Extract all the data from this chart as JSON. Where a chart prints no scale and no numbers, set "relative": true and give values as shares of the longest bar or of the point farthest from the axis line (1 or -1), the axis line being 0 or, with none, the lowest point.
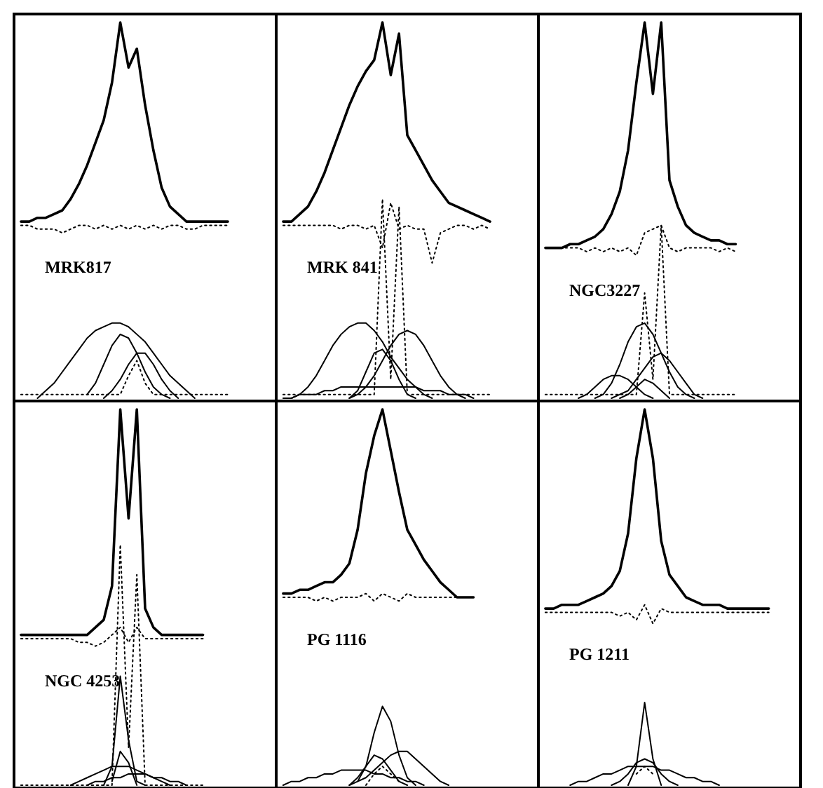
{
  "chart_data": [
    {
      "type": "line",
      "relative": true,
      "title": "MRK817",
      "categories": [
        null,
        null,
        null,
        null,
        null,
        null,
        null,
        null,
        null,
        null,
        null,
        null,
        null,
        null,
        null,
        null,
        null,
        null,
        null,
        null,
        null,
        null,
        null,
        null,
        null,
        null,
        null,
        null,
        null,
        null,
        null
      ],
      "series": [
        {
          "color": "#000000",
          "line_style": "solid",
          "values": [
            0.47,
            0.47,
            0.48,
            0.48,
            0.49,
            0.5,
            0.53,
            0.57,
            0.62,
            0.68,
            0.74,
            0.84,
            1.0,
            0.88,
            0.93,
            0.78,
            0.66,
            0.56,
            0.51,
            0.49,
            0.47,
            0.47,
            0.47,
            0.47,
            0.47,
            0.47,
            null,
            null,
            null,
            null,
            null
          ]
        },
        {
          "color": "#000000",
          "line_style": "dotted",
          "values": [
            0.46,
            0.46,
            0.45,
            0.45,
            0.45,
            0.44,
            0.45,
            0.46,
            0.46,
            0.45,
            0.46,
            0.45,
            0.46,
            0.45,
            0.46,
            0.45,
            0.46,
            0.45,
            0.46,
            0.46,
            0.45,
            0.45,
            0.46,
            0.46,
            0.46,
            0.46,
            null,
            null,
            null,
            null,
            null
          ]
        },
        {
          "color": "#000000",
          "line_style": "solid",
          "values": [
            null,
            null,
            0.0,
            0.02,
            0.04,
            0.07,
            0.1,
            0.13,
            0.16,
            0.18,
            0.19,
            0.2,
            0.2,
            0.19,
            0.17,
            0.15,
            0.12,
            0.09,
            0.06,
            0.04,
            0.02,
            0.0,
            null,
            null,
            null,
            null,
            null,
            null,
            null,
            null,
            null
          ]
        },
        {
          "color": "#000000",
          "line_style": "solid",
          "values": [
            null,
            null,
            null,
            null,
            null,
            null,
            null,
            null,
            0.01,
            0.04,
            0.09,
            0.14,
            0.17,
            0.16,
            0.12,
            0.07,
            0.03,
            0.01,
            0.0,
            null,
            null,
            null,
            null,
            null,
            null,
            null,
            null,
            null,
            null,
            null,
            null
          ]
        },
        {
          "color": "#000000",
          "line_style": "solid",
          "values": [
            null,
            null,
            null,
            null,
            null,
            null,
            null,
            null,
            null,
            null,
            0.0,
            0.02,
            0.05,
            0.09,
            0.12,
            0.12,
            0.09,
            0.05,
            0.02,
            0.0,
            null,
            null,
            null,
            null,
            null,
            null,
            null,
            null,
            null,
            null,
            null
          ]
        },
        {
          "color": "#000000",
          "line_style": "dotted",
          "values": [
            0.01,
            0.01,
            0.01,
            0.01,
            0.01,
            0.01,
            0.01,
            0.01,
            0.01,
            0.01,
            0.01,
            0.01,
            0.01,
            0.06,
            0.1,
            0.04,
            0.01,
            0.01,
            0.01,
            0.01,
            0.01,
            0.01,
            0.01,
            0.01,
            0.01,
            0.01,
            null,
            null,
            null,
            null,
            null
          ]
        }
      ]
    },
    {
      "type": "line",
      "relative": true,
      "title": "MRK 841",
      "categories": [
        null,
        null,
        null,
        null,
        null,
        null,
        null,
        null,
        null,
        null,
        null,
        null,
        null,
        null,
        null,
        null,
        null,
        null,
        null,
        null,
        null,
        null,
        null,
        null,
        null,
        null,
        null,
        null,
        null,
        null,
        null
      ],
      "series": [
        {
          "color": "#000000",
          "line_style": "solid",
          "values": [
            0.47,
            0.47,
            0.49,
            0.51,
            0.55,
            0.6,
            0.66,
            0.72,
            0.78,
            0.83,
            0.87,
            0.9,
            1.0,
            0.86,
            0.97,
            0.7,
            0.66,
            0.62,
            0.58,
            0.55,
            0.52,
            0.51,
            0.5,
            0.49,
            0.48,
            0.47,
            null,
            null,
            null,
            null,
            null
          ]
        },
        {
          "color": "#000000",
          "line_style": "dotted",
          "values": [
            0.46,
            0.46,
            0.46,
            0.46,
            0.46,
            0.46,
            0.46,
            0.45,
            0.46,
            0.46,
            0.45,
            0.46,
            0.4,
            0.52,
            0.45,
            0.46,
            0.45,
            0.45,
            0.36,
            0.44,
            0.45,
            0.46,
            0.46,
            0.45,
            0.46,
            0.45,
            null,
            null,
            null,
            null,
            null
          ]
        },
        {
          "color": "#000000",
          "line_style": "solid",
          "values": [
            null,
            0.0,
            0.01,
            0.03,
            0.06,
            0.1,
            0.14,
            0.17,
            0.19,
            0.2,
            0.2,
            0.18,
            0.15,
            0.11,
            0.08,
            0.05,
            0.03,
            0.01,
            0.0,
            null,
            null,
            null,
            null,
            null,
            null,
            null,
            null,
            null,
            null,
            null,
            null
          ]
        },
        {
          "color": "#000000",
          "line_style": "solid",
          "values": [
            null,
            null,
            null,
            null,
            null,
            null,
            null,
            null,
            0.0,
            0.01,
            0.03,
            0.06,
            0.1,
            0.14,
            0.17,
            0.18,
            0.17,
            0.14,
            0.1,
            0.06,
            0.03,
            0.01,
            0.0,
            null,
            null,
            null,
            null,
            null,
            null,
            null,
            null
          ]
        },
        {
          "color": "#000000",
          "line_style": "solid",
          "values": [
            null,
            null,
            null,
            null,
            null,
            null,
            null,
            null,
            0.0,
            0.02,
            0.07,
            0.12,
            0.13,
            0.1,
            0.05,
            0.01,
            0.0,
            null,
            null,
            null,
            null,
            null,
            null,
            null,
            null,
            null,
            null,
            null,
            null,
            null,
            null
          ]
        },
        {
          "color": "#000000",
          "line_style": "solid",
          "values": [
            0.0,
            0.0,
            0.01,
            0.01,
            0.01,
            0.02,
            0.02,
            0.03,
            0.03,
            0.03,
            0.03,
            0.03,
            0.03,
            0.03,
            0.03,
            0.03,
            0.03,
            0.02,
            0.02,
            0.02,
            0.01,
            0.01,
            0.01,
            0.0,
            null,
            null,
            null,
            null,
            null,
            null,
            null
          ]
        },
        {
          "color": "#000000",
          "line_style": "dotted",
          "values": [
            0.01,
            0.01,
            0.01,
            0.01,
            0.01,
            0.01,
            0.01,
            0.01,
            0.01,
            0.01,
            0.01,
            0.01,
            0.53,
            0.05,
            0.51,
            0.01,
            0.01,
            0.01,
            0.01,
            0.01,
            0.01,
            0.01,
            0.01,
            0.01,
            0.01,
            0.01,
            null,
            null,
            null,
            null,
            null
          ]
        }
      ]
    },
    {
      "type": "line",
      "relative": true,
      "title": "NGC3227",
      "categories": [
        null,
        null,
        null,
        null,
        null,
        null,
        null,
        null,
        null,
        null,
        null,
        null,
        null,
        null,
        null,
        null,
        null,
        null,
        null,
        null,
        null,
        null,
        null,
        null,
        null,
        null,
        null,
        null,
        null,
        null,
        null
      ],
      "series": [
        {
          "color": "#000000",
          "line_style": "solid",
          "values": [
            0.4,
            0.4,
            0.4,
            0.41,
            0.41,
            0.42,
            0.43,
            0.45,
            0.49,
            0.55,
            0.66,
            0.84,
            1.0,
            0.81,
            1.0,
            0.58,
            0.51,
            0.46,
            0.44,
            0.43,
            0.42,
            0.42,
            0.41,
            0.41,
            null,
            null,
            null,
            null,
            null,
            null,
            null
          ]
        },
        {
          "color": "#000000",
          "line_style": "dotted",
          "values": [
            0.4,
            0.4,
            0.4,
            0.4,
            0.4,
            0.39,
            0.4,
            0.39,
            0.4,
            0.39,
            0.4,
            0.38,
            0.44,
            0.45,
            0.46,
            0.4,
            0.39,
            0.4,
            0.4,
            0.4,
            0.4,
            0.39,
            0.4,
            0.39,
            null,
            null,
            null,
            null,
            null,
            null,
            null
          ]
        },
        {
          "color": "#000000",
          "line_style": "solid",
          "values": [
            null,
            null,
            null,
            null,
            null,
            null,
            0.0,
            0.01,
            0.04,
            0.09,
            0.15,
            0.19,
            0.2,
            0.17,
            0.12,
            0.07,
            0.03,
            0.01,
            0.0,
            null,
            null,
            null,
            null,
            null,
            null,
            null,
            null,
            null,
            null,
            null,
            null
          ]
        },
        {
          "color": "#000000",
          "line_style": "solid",
          "values": [
            null,
            null,
            null,
            null,
            null,
            null,
            null,
            null,
            0.0,
            0.01,
            0.02,
            0.05,
            0.08,
            0.11,
            0.12,
            0.1,
            0.07,
            0.04,
            0.01,
            0.0,
            null,
            null,
            null,
            null,
            null,
            null,
            null,
            null,
            null,
            null,
            null
          ]
        },
        {
          "color": "#000000",
          "line_style": "solid",
          "values": [
            null,
            null,
            null,
            null,
            0.0,
            0.01,
            0.03,
            0.05,
            0.06,
            0.06,
            0.05,
            0.03,
            0.01,
            0.0,
            null,
            null,
            null,
            null,
            null,
            null,
            null,
            null,
            null,
            null,
            null,
            null,
            null,
            null,
            null,
            null,
            null
          ]
        },
        {
          "color": "#000000",
          "line_style": "solid",
          "values": [
            null,
            null,
            null,
            null,
            null,
            null,
            null,
            null,
            null,
            0.0,
            0.01,
            0.03,
            0.05,
            0.04,
            0.02,
            0.0,
            null,
            null,
            null,
            null,
            null,
            null,
            null,
            null,
            null,
            null,
            null,
            null,
            null,
            null,
            null
          ]
        },
        {
          "color": "#000000",
          "line_style": "dotted",
          "values": [
            0.01,
            0.01,
            0.01,
            0.01,
            0.01,
            0.01,
            0.01,
            0.01,
            0.01,
            0.01,
            0.01,
            0.01,
            0.28,
            0.05,
            0.46,
            0.01,
            0.01,
            0.01,
            0.01,
            0.01,
            0.01,
            0.01,
            0.01,
            0.01,
            null,
            null,
            null,
            null,
            null,
            null,
            null
          ]
        }
      ]
    },
    {
      "type": "line",
      "relative": true,
      "title": "NGC 4253",
      "categories": [
        null,
        null,
        null,
        null,
        null,
        null,
        null,
        null,
        null,
        null,
        null,
        null,
        null,
        null,
        null,
        null,
        null,
        null,
        null,
        null,
        null,
        null,
        null,
        null,
        null,
        null,
        null,
        null,
        null,
        null,
        null
      ],
      "series": [
        {
          "color": "#000000",
          "line_style": "solid",
          "values": [
            0.4,
            0.4,
            0.4,
            0.4,
            0.4,
            0.4,
            0.4,
            0.4,
            0.4,
            0.42,
            0.44,
            0.53,
            1.0,
            0.71,
            1.0,
            0.47,
            0.42,
            0.4,
            0.4,
            0.4,
            0.4,
            0.4,
            0.4,
            null,
            null,
            null,
            null,
            null,
            null,
            null,
            null
          ]
        },
        {
          "color": "#000000",
          "line_style": "dotted",
          "values": [
            0.39,
            0.39,
            0.39,
            0.39,
            0.39,
            0.39,
            0.39,
            0.38,
            0.38,
            0.37,
            0.38,
            0.4,
            0.42,
            0.38,
            0.42,
            0.39,
            0.39,
            0.39,
            0.39,
            0.39,
            0.39,
            0.39,
            0.39,
            null,
            null,
            null,
            null,
            null,
            null,
            null,
            null
          ]
        },
        {
          "color": "#000000",
          "line_style": "solid",
          "values": [
            null,
            null,
            null,
            null,
            null,
            null,
            null,
            null,
            null,
            null,
            0.0,
            0.05,
            0.29,
            0.12,
            0.01,
            0.0,
            null,
            null,
            null,
            null,
            null,
            null,
            null,
            null,
            null,
            null,
            null,
            null,
            null,
            null,
            null
          ]
        },
        {
          "color": "#000000",
          "line_style": "solid",
          "values": [
            null,
            null,
            null,
            null,
            null,
            null,
            null,
            null,
            null,
            null,
            null,
            0.01,
            0.09,
            0.06,
            0.0,
            null,
            null,
            null,
            null,
            null,
            null,
            null,
            null,
            null,
            null,
            null,
            null,
            null,
            null,
            null,
            null
          ]
        },
        {
          "color": "#000000",
          "line_style": "solid",
          "values": [
            null,
            null,
            null,
            null,
            null,
            null,
            0.0,
            0.01,
            0.02,
            0.03,
            0.04,
            0.05,
            0.05,
            0.05,
            0.04,
            0.03,
            0.02,
            0.01,
            0.0,
            null,
            null,
            null,
            null,
            null,
            null,
            null,
            null,
            null,
            null,
            null,
            null
          ]
        },
        {
          "color": "#000000",
          "line_style": "solid",
          "values": [
            null,
            null,
            null,
            null,
            null,
            null,
            null,
            null,
            0.0,
            0.01,
            0.01,
            0.02,
            0.02,
            0.03,
            0.03,
            0.03,
            0.02,
            0.02,
            0.01,
            0.01,
            0.0,
            null,
            null,
            null,
            null,
            null,
            null,
            null,
            null,
            null,
            null
          ]
        },
        {
          "color": "#000000",
          "line_style": "dotted",
          "values": [
            0.0,
            0.0,
            0.0,
            0.0,
            0.0,
            0.0,
            0.0,
            0.0,
            0.0,
            0.0,
            0.0,
            0.0,
            0.64,
            0.1,
            0.56,
            0.0,
            0.0,
            0.0,
            0.0,
            0.0,
            0.0,
            0.0,
            0.0,
            null,
            null,
            null,
            null,
            null,
            null,
            null,
            null
          ]
        }
      ]
    },
    {
      "type": "line",
      "relative": true,
      "title": "PG 1116",
      "categories": [
        null,
        null,
        null,
        null,
        null,
        null,
        null,
        null,
        null,
        null,
        null,
        null,
        null,
        null,
        null,
        null,
        null,
        null,
        null,
        null,
        null,
        null,
        null,
        null,
        null,
        null,
        null,
        null,
        null,
        null,
        null
      ],
      "series": [
        {
          "color": "#000000",
          "line_style": "solid",
          "values": [
            0.51,
            0.51,
            0.52,
            0.52,
            0.53,
            0.54,
            0.54,
            0.56,
            0.59,
            0.68,
            0.83,
            0.93,
            1.0,
            0.89,
            0.78,
            0.68,
            0.64,
            0.6,
            0.57,
            0.54,
            0.52,
            0.5,
            0.5,
            0.5,
            null,
            null,
            null,
            null,
            null,
            null,
            null
          ]
        },
        {
          "color": "#000000",
          "line_style": "dotted",
          "values": [
            0.5,
            0.5,
            0.5,
            0.5,
            0.49,
            0.5,
            0.49,
            0.5,
            0.5,
            0.5,
            0.51,
            0.49,
            0.51,
            0.5,
            0.49,
            0.51,
            0.5,
            0.5,
            0.5,
            0.5,
            0.5,
            0.5,
            0.5,
            0.5,
            null,
            null,
            null,
            null,
            null,
            null,
            null
          ]
        },
        {
          "color": "#000000",
          "line_style": "solid",
          "values": [
            null,
            null,
            null,
            null,
            null,
            null,
            null,
            null,
            null,
            0.01,
            0.05,
            0.14,
            0.21,
            0.17,
            0.08,
            0.02,
            0.0,
            null,
            null,
            null,
            null,
            null,
            null,
            null,
            null,
            null,
            null,
            null,
            null,
            null,
            null
          ]
        },
        {
          "color": "#000000",
          "line_style": "solid",
          "values": [
            null,
            null,
            null,
            null,
            null,
            null,
            null,
            null,
            0.0,
            0.01,
            0.02,
            0.04,
            0.06,
            0.08,
            0.09,
            0.09,
            0.07,
            0.05,
            0.03,
            0.01,
            0.0,
            null,
            null,
            null,
            null,
            null,
            null,
            null,
            null,
            null,
            null
          ]
        },
        {
          "color": "#000000",
          "line_style": "solid",
          "values": [
            null,
            null,
            null,
            null,
            null,
            null,
            null,
            null,
            0.0,
            0.02,
            0.05,
            0.08,
            0.07,
            0.04,
            0.01,
            0.0,
            null,
            null,
            null,
            null,
            null,
            null,
            null,
            null,
            null,
            null,
            null,
            null,
            null,
            null,
            null
          ]
        },
        {
          "color": "#000000",
          "line_style": "solid",
          "values": [
            0.0,
            0.01,
            0.01,
            0.02,
            0.02,
            0.03,
            0.03,
            0.04,
            0.04,
            0.04,
            0.04,
            0.03,
            0.03,
            0.02,
            0.02,
            0.01,
            0.01,
            0.0,
            null,
            null,
            null,
            null,
            null,
            null,
            null,
            null,
            null,
            null,
            null,
            null,
            null
          ]
        },
        {
          "color": "#000000",
          "line_style": "dotted",
          "values": [
            null,
            null,
            null,
            null,
            null,
            null,
            null,
            null,
            null,
            null,
            0.0,
            0.03,
            0.05,
            0.03,
            0.01,
            null,
            null,
            null,
            null,
            null,
            null,
            null,
            null,
            null,
            null,
            null,
            null,
            null,
            null,
            null,
            null
          ]
        }
      ]
    },
    {
      "type": "line",
      "relative": true,
      "title": "PG 1211",
      "categories": [
        null,
        null,
        null,
        null,
        null,
        null,
        null,
        null,
        null,
        null,
        null,
        null,
        null,
        null,
        null,
        null,
        null,
        null,
        null,
        null,
        null,
        null,
        null,
        null,
        null,
        null,
        null,
        null,
        null,
        null,
        null
      ],
      "series": [
        {
          "color": "#000000",
          "line_style": "solid",
          "values": [
            0.47,
            0.47,
            0.48,
            0.48,
            0.48,
            0.49,
            0.5,
            0.51,
            0.53,
            0.57,
            0.67,
            0.87,
            1.0,
            0.87,
            0.65,
            0.56,
            0.53,
            0.5,
            0.49,
            0.48,
            0.48,
            0.48,
            0.47,
            0.47,
            0.47,
            0.47,
            0.47,
            0.47,
            null,
            null,
            null
          ]
        },
        {
          "color": "#000000",
          "line_style": "dotted",
          "values": [
            0.46,
            0.46,
            0.46,
            0.46,
            0.46,
            0.46,
            0.46,
            0.46,
            0.46,
            0.45,
            0.46,
            0.44,
            0.48,
            0.43,
            0.47,
            0.46,
            0.46,
            0.46,
            0.46,
            0.46,
            0.46,
            0.46,
            0.46,
            0.46,
            0.46,
            0.46,
            0.46,
            0.46,
            null,
            null,
            null
          ]
        },
        {
          "color": "#000000",
          "line_style": "solid",
          "values": [
            null,
            null,
            null,
            null,
            null,
            null,
            null,
            null,
            null,
            null,
            0.0,
            0.05,
            0.22,
            0.07,
            0.0,
            null,
            null,
            null,
            null,
            null,
            null,
            null,
            null,
            null,
            null,
            null,
            null,
            null,
            null,
            null,
            null
          ]
        },
        {
          "color": "#000000",
          "line_style": "solid",
          "values": [
            null,
            null,
            null,
            null,
            null,
            null,
            null,
            null,
            0.0,
            0.01,
            0.03,
            0.06,
            0.07,
            0.06,
            0.03,
            0.01,
            0.0,
            null,
            null,
            null,
            null,
            null,
            null,
            null,
            null,
            null,
            null,
            null,
            null,
            null,
            null
          ]
        },
        {
          "color": "#000000",
          "line_style": "solid",
          "values": [
            null,
            null,
            null,
            0.0,
            0.01,
            0.01,
            0.02,
            0.03,
            0.03,
            0.04,
            0.05,
            0.05,
            0.05,
            0.05,
            0.04,
            0.04,
            0.03,
            0.02,
            0.02,
            0.01,
            0.01,
            0.0,
            null,
            null,
            null,
            null,
            null,
            null,
            null,
            null,
            null
          ]
        },
        {
          "color": "#000000",
          "line_style": "dotted",
          "values": [
            null,
            null,
            null,
            null,
            null,
            null,
            null,
            null,
            null,
            null,
            null,
            0.03,
            0.05,
            0.03,
            null,
            null,
            null,
            null,
            null,
            null,
            null,
            null,
            null,
            null,
            null,
            null,
            null,
            null,
            null,
            null,
            null
          ]
        }
      ]
    }
  ]
}
